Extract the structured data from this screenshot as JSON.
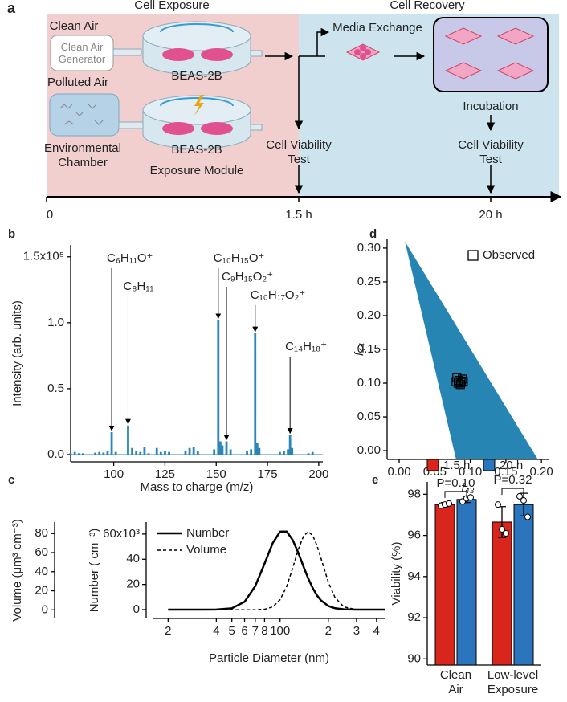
{
  "diagram": {
    "panel": "a",
    "sections": [
      "Cell Exposure",
      "Cell Recovery"
    ],
    "clean_air": {
      "title": "Clean Air",
      "source": "Clean Air Generator"
    },
    "polluted_air": {
      "title": "Polluted Air",
      "source": "Environmental Chamber"
    },
    "cells": [
      "BEAS-2B",
      "BEAS-2B"
    ],
    "module": "Exposure Module",
    "media_exchange": "Media Exchange",
    "incubation": "Incubation",
    "viability_tests": [
      "Cell Viability Test",
      "Cell Viability Test"
    ],
    "timeline": [
      "0",
      "1.5 h",
      "20 h"
    ]
  },
  "chart_data": [
    {
      "type": "bar",
      "panel": "b",
      "x": [
        79,
        81,
        83,
        85,
        91,
        93,
        95,
        97,
        99,
        101,
        107,
        109,
        111,
        113,
        115,
        117,
        121,
        123,
        125,
        127,
        135,
        137,
        139,
        141,
        149,
        151,
        152,
        153,
        155,
        157,
        165,
        167,
        169,
        170,
        171,
        181,
        183,
        185,
        186,
        187,
        195,
        197
      ],
      "values": [
        1000,
        2000,
        1000,
        1000,
        1500,
        2000,
        1500,
        3000,
        17000,
        2000,
        22000,
        5000,
        3000,
        2000,
        6000,
        1000,
        5000,
        2000,
        3000,
        2000,
        3000,
        5000,
        6000,
        3000,
        4000,
        102000,
        10000,
        7000,
        10000,
        4000,
        3000,
        4000,
        92000,
        9000,
        5000,
        2000,
        3000,
        4000,
        15000,
        5000,
        1000,
        2000
      ],
      "color": "#2b86b8",
      "xlim": [
        79,
        202
      ],
      "xticks": [
        100,
        125,
        150,
        175,
        200
      ],
      "ylim": [
        -5500,
        159000
      ],
      "yticks": [
        {
          "value": 0,
          "label": "0.0"
        },
        {
          "value": 50000,
          "label": "0.5"
        },
        {
          "value": 100000,
          "label": "1.0"
        },
        {
          "value": 150000,
          "label": "1.5x10⁵"
        }
      ],
      "xlabel": "Mass to charge (m/z)",
      "ylabel": "Intensity (arb. units)",
      "annotations": [
        {
          "text": "C₆H₁₁O⁺",
          "x": 99
        },
        {
          "text": "C₈H₁₁⁺",
          "x": 107
        },
        {
          "text": "C₁₀H₁₅O⁺",
          "x": 151
        },
        {
          "text": "C₉H₁₅O₂⁺",
          "x": 155
        },
        {
          "text": "C₁₀H₁₇O₂⁺",
          "x": 169
        },
        {
          "text": "C₁₄H₁₈⁺",
          "x": 186
        }
      ]
    },
    {
      "type": "scatter",
      "panel": "d",
      "region": {
        "color": "#2785b3",
        "x": [
          0.008,
          0.08,
          0.195
        ],
        "y": [
          0.31,
          -0.013,
          -0.013
        ]
      },
      "x": [
        0.081,
        0.084,
        0.087,
        0.089,
        0.083,
        0.086,
        0.09,
        0.08
      ],
      "series": [
        {
          "name": "Observed",
          "color": "#000000",
          "values": [
            0.108,
            0.104,
            0.101,
            0.106,
            0.1,
            0.098,
            0.103,
            0.102
          ]
        }
      ],
      "xlim": [
        -0.017,
        0.21
      ],
      "xticks": [
        {
          "value": 0,
          "label": "0.00"
        },
        0.05,
        {
          "value": 0.1,
          "label": "0.10"
        },
        0.15,
        {
          "value": 0.2,
          "label": "0.20"
        }
      ],
      "ylim": [
        -0.013,
        0.313
      ],
      "yticks": [
        {
          "value": 0,
          "label": "0.00"
        },
        0.05,
        {
          "value": 0.1,
          "label": "0.10"
        },
        0.15,
        {
          "value": 0.2,
          "label": "0.20"
        },
        0.25,
        {
          "value": 0.3,
          "label": "0.30"
        }
      ],
      "xlabel": "f₄₃",
      "ylabel": "f₄₄",
      "legend": "upper right"
    },
    {
      "type": "line",
      "panel": "c",
      "x": [
        20,
        30,
        40,
        50,
        60,
        70,
        80,
        90,
        100,
        110,
        120,
        130,
        140,
        150,
        160,
        170,
        180,
        200,
        220,
        250,
        300,
        450
      ],
      "series": [
        {
          "name": "Number",
          "color": "#000000",
          "dash": "solid",
          "values": [
            0,
            0,
            60,
            1080,
            6200,
            18700,
            36500,
            52900,
            61900,
            62000,
            55200,
            45000,
            34200,
            24600,
            17000,
            11300,
            7350,
            2900,
            1100,
            240,
            0,
            0
          ]
        },
        {
          "name": "Volume",
          "color": "#000000",
          "dash": "dashed",
          "axis": "y2",
          "values": [
            0,
            0,
            0,
            0,
            0,
            0.1,
            0.6,
            3.1,
            10.6,
            24.6,
            44,
            63.5,
            77.2,
            82,
            77.8,
            67.4,
            54.1,
            29.1,
            13.1,
            3.1,
            0.2,
            0
          ]
        }
      ],
      "xscale": "log",
      "xlim": [
        16,
        455
      ],
      "xticks": [
        {
          "value": 20,
          "label": "2"
        },
        {
          "value": 40,
          "label": "4"
        },
        {
          "value": 50,
          "label": "5"
        },
        {
          "value": 60,
          "label": "6"
        },
        {
          "value": 70,
          "label": "7"
        },
        {
          "value": 80,
          "label": "8"
        },
        100,
        {
          "value": 200,
          "label": "2"
        },
        {
          "value": 300,
          "label": "3"
        },
        {
          "value": 400,
          "label": "4"
        }
      ],
      "ylim": [
        -7000,
        69500
      ],
      "yticks": [
        0,
        {
          "value": 20000,
          "label": "20"
        },
        {
          "value": 40000,
          "label": "40"
        },
        {
          "value": 60000,
          "label": "60x10³"
        }
      ],
      "y2lim": [
        -9,
        92
      ],
      "y2ticks": [
        0,
        20,
        40,
        60,
        80
      ],
      "xlabel": "Particle Diameter (nm)",
      "ylabel": "Number ( cm⁻³)",
      "y2label": "Volume (μm³ cm⁻³)",
      "legend": "upper left"
    },
    {
      "type": "bar",
      "panel": "e",
      "categories": [
        "Clean Air",
        "Low-level Exposure"
      ],
      "series": [
        {
          "name": "1.5 h",
          "color": "#d8261d",
          "values": [
            97.5,
            96.65
          ],
          "errors": [
            0.1,
            0.75
          ],
          "points": [
            [
              97.45,
              97.5,
              97.55
            ],
            [
              97.5,
              96.3,
              96.1
            ]
          ]
        },
        {
          "name": "20 h",
          "color": "#2a75bd",
          "values": [
            97.75,
            97.5
          ],
          "errors": [
            0.15,
            0.55
          ],
          "points": [
            [
              97.65,
              97.8,
              97.85
            ],
            [
              97.9,
              97.7,
              96.9
            ]
          ]
        }
      ],
      "ylim": [
        89.7,
        98.6
      ],
      "yticks": [
        90,
        92,
        94,
        96,
        98
      ],
      "ylabel": "Viability (%)",
      "annotations": [
        "P=0.10",
        "P=0.32"
      ],
      "legend": "top"
    }
  ]
}
